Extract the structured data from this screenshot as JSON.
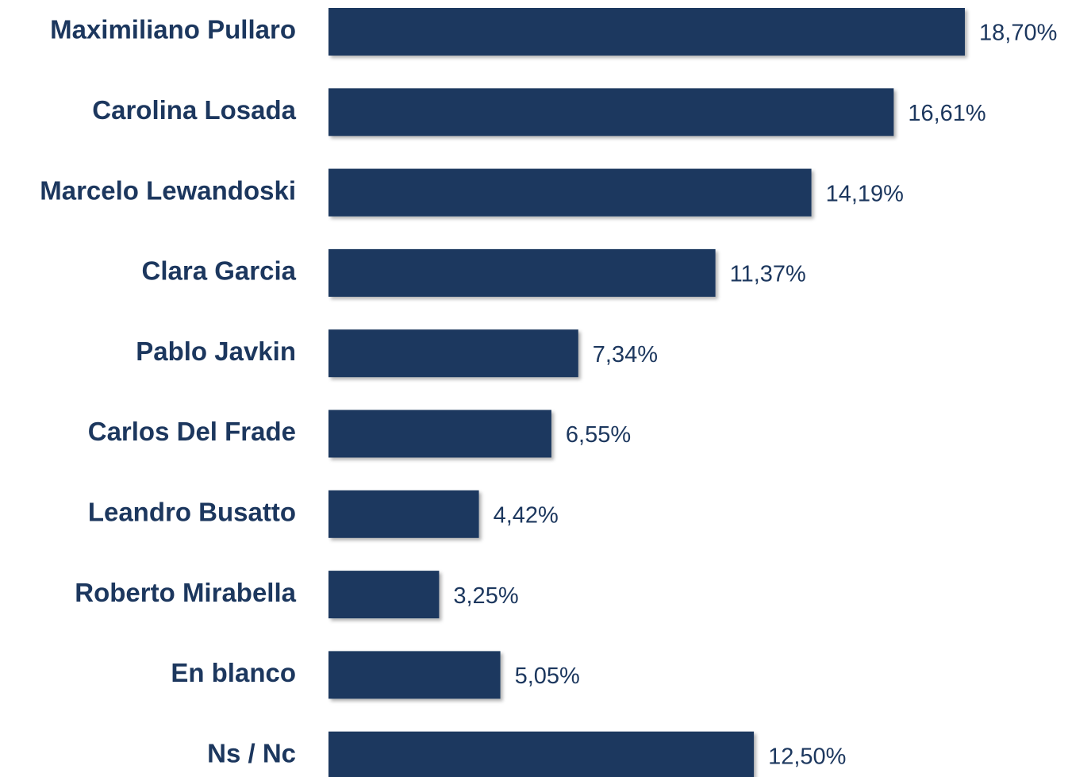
{
  "chart_data": {
    "type": "barh",
    "categories": [
      "Maximiliano Pullaro",
      "Carolina Losada",
      "Marcelo Lewandoski",
      "Clara Garcia",
      "Pablo Javkin",
      "Carlos Del Frade",
      "Leandro Busatto",
      "Roberto Mirabella",
      "En blanco",
      "Ns / Nc"
    ],
    "values": [
      18.7,
      16.61,
      14.19,
      11.37,
      7.34,
      6.55,
      4.42,
      3.25,
      5.05,
      12.5
    ],
    "value_labels": [
      "18,70%",
      "16,61%",
      "14,19%",
      "11,37%",
      "7,34%",
      "6,55%",
      "4,42%",
      "3,25%",
      "5,05%",
      "12,50%"
    ],
    "color": "#1c375e"
  }
}
